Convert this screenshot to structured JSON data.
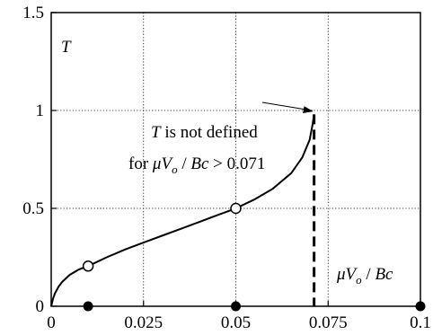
{
  "chart_data": {
    "type": "line",
    "xlim": [
      0,
      0.1
    ],
    "ylim": [
      0,
      1.5
    ],
    "x_ticks": [
      "0",
      "0.025",
      "0.05",
      "0.075",
      "0.1"
    ],
    "y_ticks": [
      "0",
      "0.5",
      "1",
      "1.5"
    ],
    "grid": "dotted",
    "ylabel": "T",
    "xlabel": "μV_o / Bc",
    "curve": {
      "x": [
        0.0,
        0.0005,
        0.001,
        0.002,
        0.003,
        0.005,
        0.0075,
        0.01,
        0.015,
        0.02,
        0.025,
        0.03,
        0.035,
        0.04,
        0.045,
        0.05,
        0.055,
        0.06,
        0.065,
        0.068,
        0.07,
        0.0708,
        0.0712
      ],
      "y": [
        0.0,
        0.04,
        0.065,
        0.1,
        0.125,
        0.16,
        0.188,
        0.205,
        0.25,
        0.29,
        0.325,
        0.36,
        0.395,
        0.43,
        0.465,
        0.5,
        0.545,
        0.6,
        0.68,
        0.76,
        0.85,
        0.93,
        0.98
      ]
    },
    "open_markers": [
      {
        "x": 0.01,
        "y": 0.205
      },
      {
        "x": 0.05,
        "y": 0.5
      }
    ],
    "filled_markers_x": [
      0.01,
      0.05,
      0.1
    ],
    "limit_line_x": 0.0712,
    "annotation": {
      "italic": "T",
      "text": " is not defined",
      "line2_prefix": "for ",
      "line2_expr": "μV_o / Bc",
      "line2_suffix": " > 0.071",
      "arrow_target": {
        "x": 0.0712,
        "y": 0.99
      }
    }
  }
}
